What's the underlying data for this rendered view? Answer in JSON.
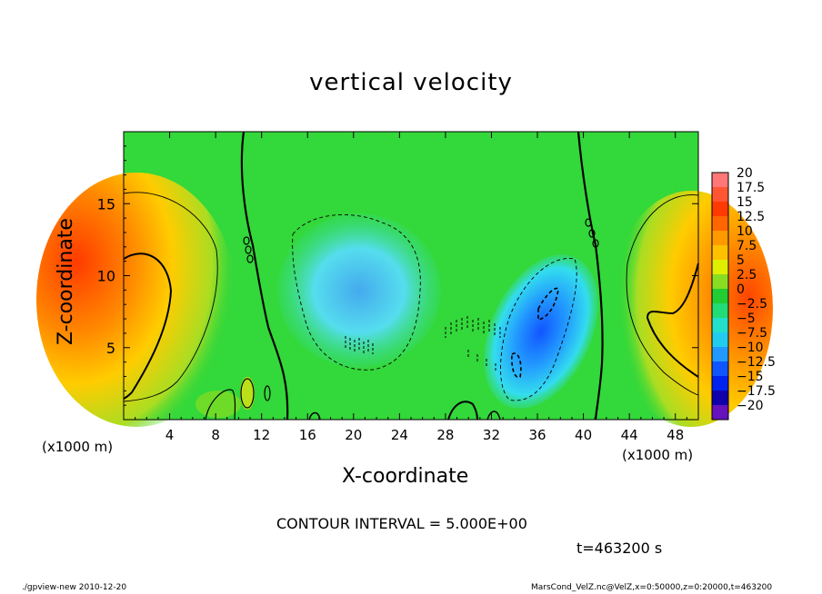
{
  "chart_data": {
    "type": "heatmap",
    "title": "vertical velocity",
    "xlabel": "X-coordinate",
    "ylabel": "Z-coordinate",
    "x_unit": "(x1000 m)",
    "xlim": [
      0,
      50
    ],
    "ylim": [
      0,
      20
    ],
    "x_ticks": [
      "4",
      "8",
      "12",
      "16",
      "20",
      "24",
      "28",
      "32",
      "36",
      "40",
      "44",
      "48"
    ],
    "x_tick_values": [
      4,
      8,
      12,
      16,
      20,
      24,
      28,
      32,
      36,
      40,
      44,
      48
    ],
    "y_ticks": [
      "5",
      "10",
      "15"
    ],
    "y_tick_values": [
      5,
      10,
      15
    ],
    "colorbar": {
      "labels": [
        "20",
        "17.5",
        "15",
        "12.5",
        "10",
        "7.5",
        "5",
        "2.5",
        "0",
        "−2.5",
        "−5",
        "−7.5",
        "−10",
        "−12.5",
        "−15",
        "−17.5",
        "−20"
      ],
      "colors": [
        "#ff7777",
        "#ff5533",
        "#ff3a00",
        "#ff6600",
        "#ff9900",
        "#ffc000",
        "#e0ee00",
        "#88dd22",
        "#22cc33",
        "#22dd77",
        "#22e0cc",
        "#22ccee",
        "#2299ff",
        "#1155ff",
        "#0022ee",
        "#1100aa",
        "#6611bb"
      ]
    },
    "contour_interval": "CONTOUR INTERVAL = 5.000E+00",
    "time": "t=463200 s"
  },
  "footer": {
    "left": "./gpview-new 2010-12-20",
    "right": "MarsCond_VelZ.nc@VelZ,x=0:50000,z=0:20000,t=463200"
  }
}
